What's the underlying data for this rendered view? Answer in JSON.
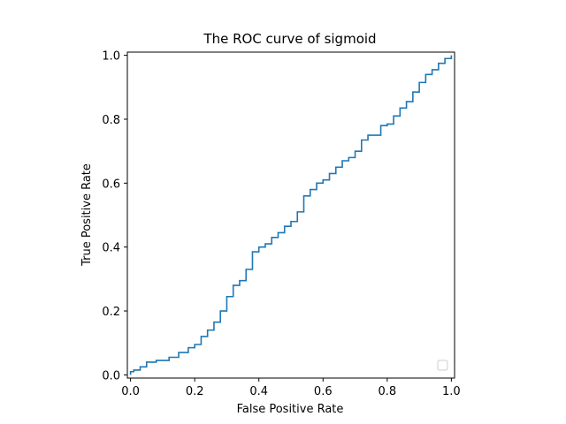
{
  "chart_data": {
    "type": "line",
    "title": "The ROC curve of sigmoid",
    "xlabel": "False Positive Rate",
    "ylabel": "True Positive Rate",
    "xlim": [
      -0.01,
      1.01
    ],
    "ylim": [
      -0.01,
      1.01
    ],
    "xticks": [
      0.0,
      0.2,
      0.4,
      0.6,
      0.8,
      1.0
    ],
    "xtick_labels": [
      "0.0",
      "0.2",
      "0.4",
      "0.6",
      "0.8",
      "1.0"
    ],
    "yticks": [
      0.0,
      0.2,
      0.4,
      0.6,
      0.8,
      1.0
    ],
    "ytick_labels": [
      "0.0",
      "0.2",
      "0.4",
      "0.6",
      "0.8",
      "1.0"
    ],
    "grid": false,
    "legend": "lower-right (empty)",
    "series": [
      {
        "color": "#1f77b4",
        "x": [
          0.0,
          0.0,
          0.01,
          0.03,
          0.05,
          0.08,
          0.1,
          0.12,
          0.15,
          0.18,
          0.2,
          0.22,
          0.24,
          0.26,
          0.28,
          0.3,
          0.32,
          0.34,
          0.36,
          0.38,
          0.4,
          0.42,
          0.44,
          0.46,
          0.48,
          0.5,
          0.52,
          0.54,
          0.56,
          0.58,
          0.6,
          0.62,
          0.64,
          0.66,
          0.68,
          0.7,
          0.72,
          0.74,
          0.76,
          0.78,
          0.8,
          0.82,
          0.84,
          0.86,
          0.88,
          0.9,
          0.92,
          0.94,
          0.96,
          0.98,
          1.0
        ],
        "y": [
          0.0,
          0.01,
          0.015,
          0.025,
          0.04,
          0.045,
          0.045,
          0.055,
          0.07,
          0.085,
          0.095,
          0.12,
          0.14,
          0.165,
          0.2,
          0.245,
          0.28,
          0.295,
          0.33,
          0.385,
          0.4,
          0.41,
          0.43,
          0.445,
          0.465,
          0.48,
          0.51,
          0.56,
          0.58,
          0.6,
          0.61,
          0.63,
          0.65,
          0.67,
          0.68,
          0.7,
          0.735,
          0.75,
          0.75,
          0.78,
          0.785,
          0.81,
          0.835,
          0.855,
          0.885,
          0.915,
          0.94,
          0.955,
          0.975,
          0.99,
          1.0
        ]
      }
    ]
  }
}
